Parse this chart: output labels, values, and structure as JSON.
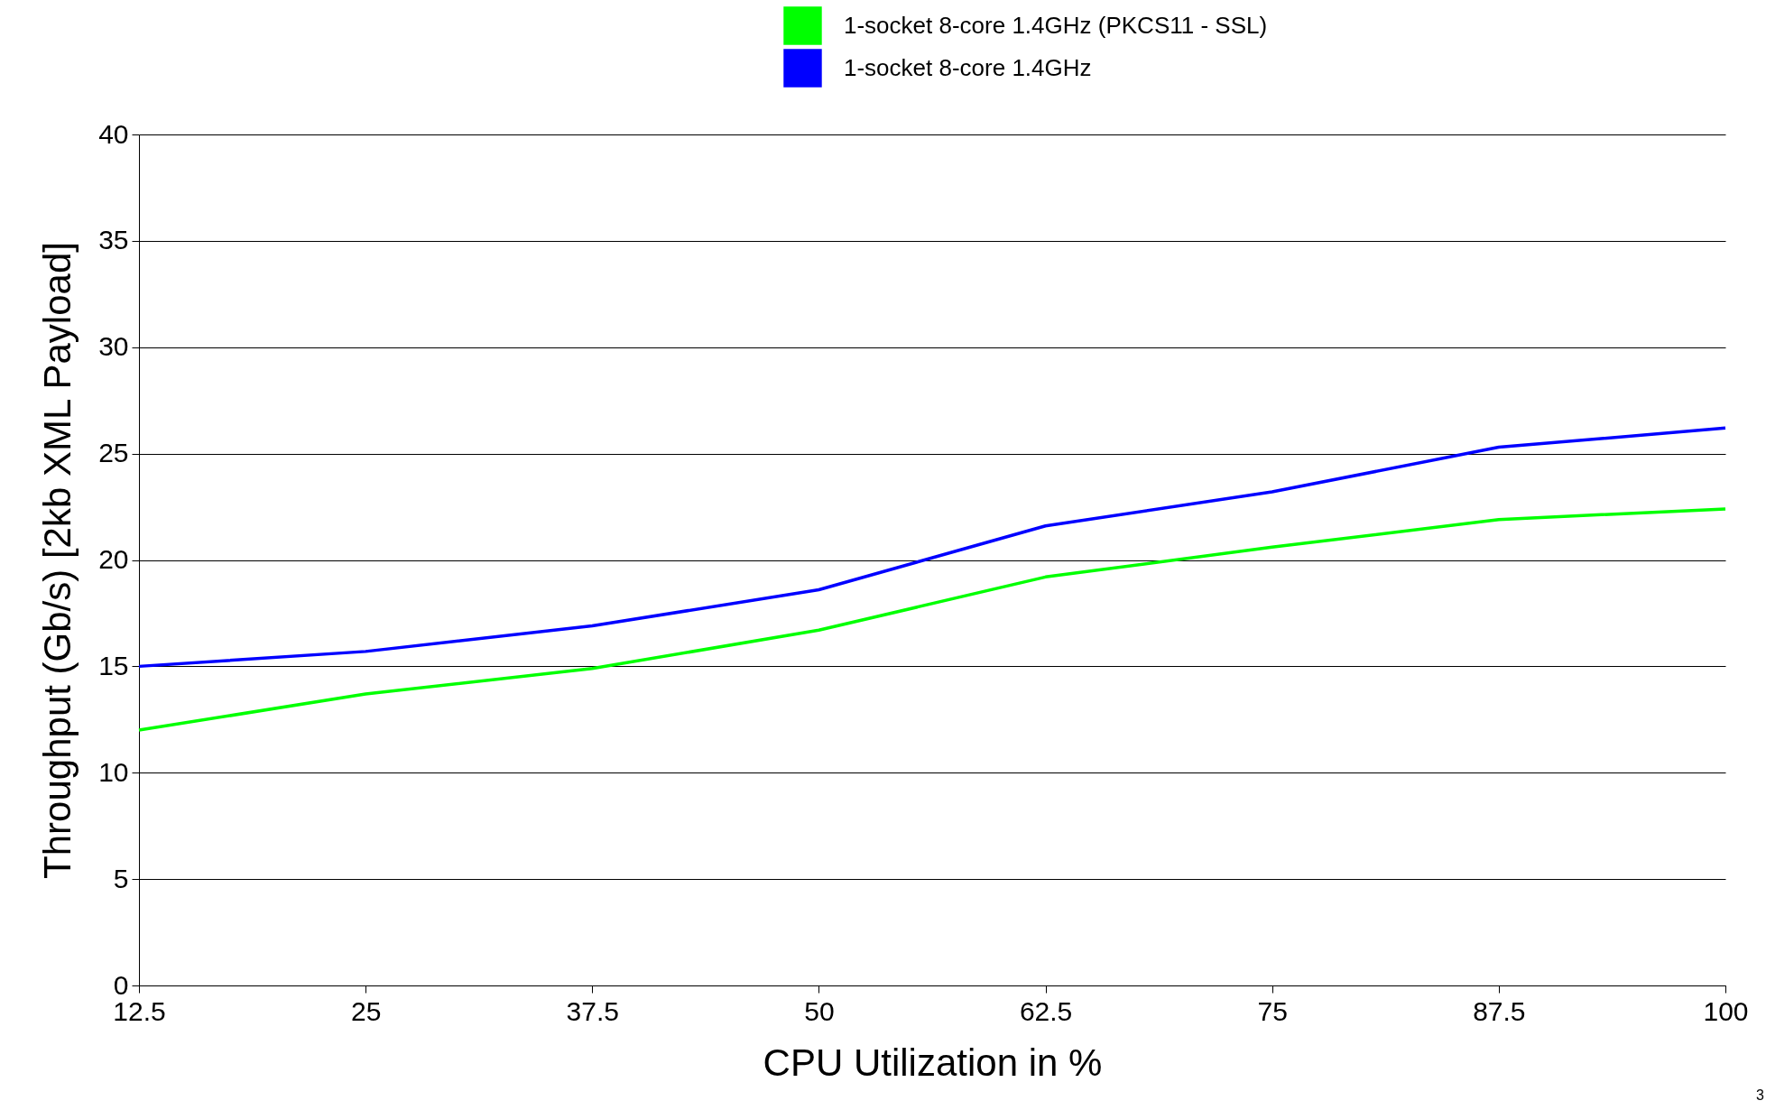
{
  "chart_data": {
    "type": "line",
    "xlabel": "CPU Utilization in %",
    "ylabel": "Throughput (Gb/s) [2kb XML Payload]",
    "x": [
      12.5,
      25,
      37.5,
      50,
      62.5,
      75,
      87.5,
      100
    ],
    "series": [
      {
        "name": "1-socket 8-core 1.4GHz (PKCS11 - SSL)",
        "color": "#00ff00",
        "values": [
          12,
          13.7,
          14.9,
          16.7,
          19.2,
          20.6,
          21.9,
          22.4
        ]
      },
      {
        "name": "1-socket 8-core 1.4GHz",
        "color": "#0000ff",
        "values": [
          15,
          15.7,
          16.9,
          18.6,
          21.6,
          23.2,
          25.3,
          26.2
        ]
      }
    ],
    "xlim": [
      12.5,
      100
    ],
    "xticks": [
      12.5,
      25,
      37.5,
      50,
      62.5,
      75,
      87.5,
      100
    ],
    "ylim": [
      0,
      40
    ],
    "yticks": [
      0,
      5,
      10,
      15,
      20,
      25,
      30,
      35,
      40
    ],
    "grid": "y",
    "legend": "top right",
    "marker": "none",
    "line_style": "solid",
    "annotations": [
      "3"
    ]
  }
}
